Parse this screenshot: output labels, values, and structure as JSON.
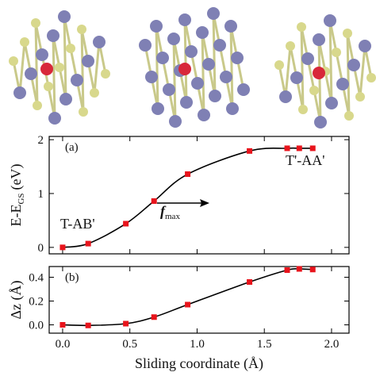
{
  "chart_data": [
    {
      "type": "line",
      "panel_label": "(a)",
      "ylabel": {
        "text": "E-E",
        "sub": "GS",
        "unit": "(eV)"
      },
      "x": [
        0,
        0.19,
        0.47,
        0.68,
        0.93,
        1.39,
        1.67,
        1.76,
        1.86
      ],
      "values": [
        0,
        0.07,
        0.44,
        0.86,
        1.36,
        1.79,
        1.84,
        1.84,
        1.84
      ],
      "color": "#e8141c",
      "line_color": "#000000",
      "xlim": [
        -0.1,
        2.13
      ],
      "xticks": [
        0,
        0.5,
        1,
        1.5,
        2
      ],
      "ylim": [
        -0.12,
        2.06
      ],
      "yticks": [
        0,
        1,
        2
      ],
      "annotations": [
        {
          "text": "T-AB'"
        },
        {
          "text": "T'-AA'"
        },
        {
          "text": "f",
          "sub": "max"
        }
      ]
    },
    {
      "type": "line",
      "panel_label": "(b)",
      "ylabel": {
        "text": "Δz (Å)"
      },
      "xlabel": "Sliding coordinate (Å)",
      "x": [
        0,
        0.19,
        0.47,
        0.68,
        0.93,
        1.39,
        1.67,
        1.76,
        1.86
      ],
      "values": [
        0,
        -0.005,
        0.01,
        0.065,
        0.17,
        0.36,
        0.46,
        0.47,
        0.465
      ],
      "color": "#e8141c",
      "line_color": "#000000",
      "xlim": [
        -0.1,
        2.13
      ],
      "xticks": [
        {
          "value": 0,
          "label": "0.0"
        },
        {
          "value": 0.5,
          "label": "0.5"
        },
        {
          "value": 1,
          "label": "1.0"
        },
        {
          "value": 1.5,
          "label": "1.5"
        },
        {
          "value": 2,
          "label": "2.0"
        }
      ],
      "ylim": [
        -0.07,
        0.49
      ],
      "yticks": [
        {
          "value": 0,
          "label": "0.0"
        },
        {
          "value": 0.2,
          "label": "0.2"
        },
        {
          "value": 0.4,
          "label": "0.4"
        }
      ]
    }
  ]
}
